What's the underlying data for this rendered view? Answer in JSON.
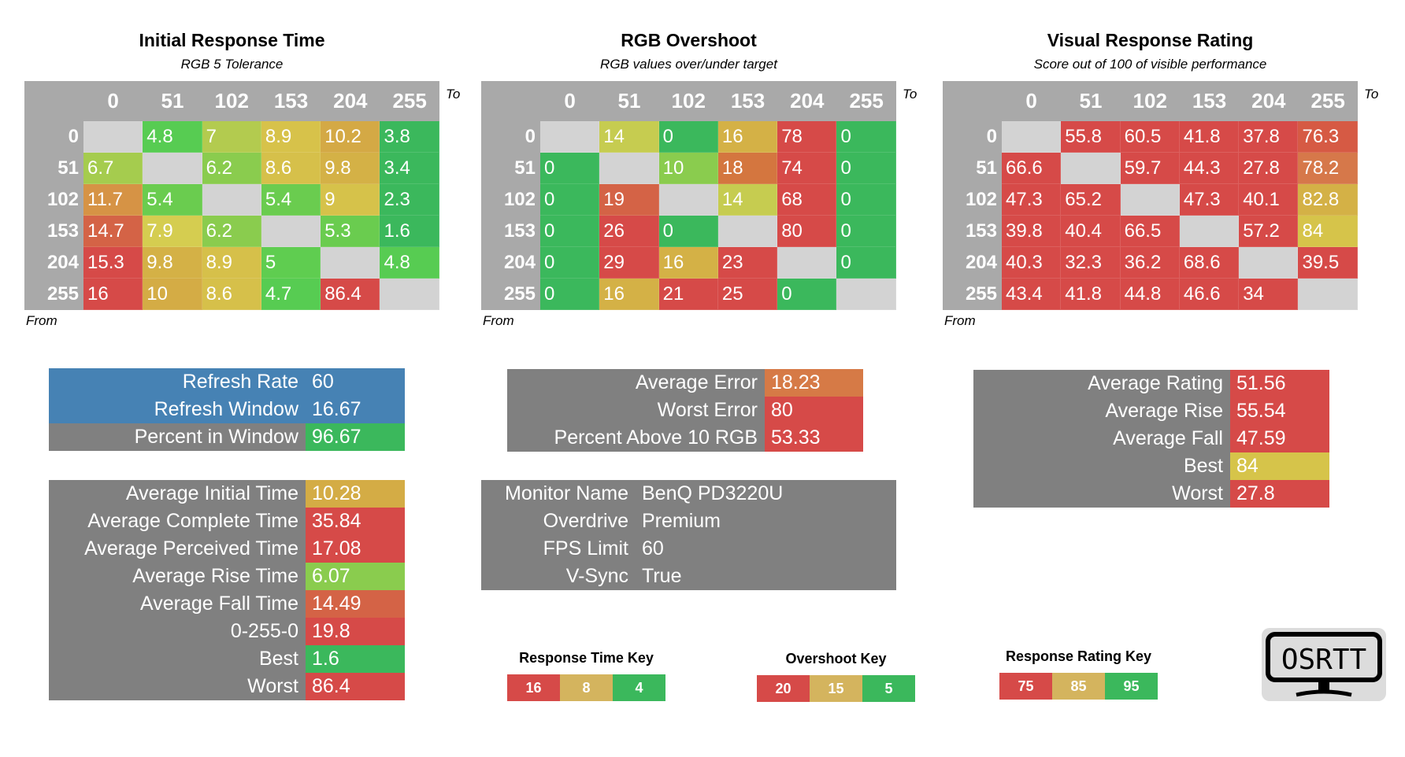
{
  "axis_labels": [
    "0",
    "51",
    "102",
    "153",
    "204",
    "255"
  ],
  "to_label": "To",
  "from_label": "From",
  "colors": {
    "header": "#a9a9a9",
    "diagonal": "#d3d3d3",
    "red": "#d64a48",
    "green": "#3bb85c",
    "stat_gray": "#808080",
    "blue": "#4682b4"
  },
  "tables": [
    {
      "title": "Initial Response Time",
      "subtitle": "RGB 5 Tolerance",
      "rows": [
        [
          null,
          {
            "v": "4.8",
            "c": "#57cc52"
          },
          {
            "v": "7",
            "c": "#b3cb4f"
          },
          {
            "v": "8.9",
            "c": "#d7c24a"
          },
          {
            "v": "10.2",
            "c": "#d4a945"
          },
          {
            "v": "3.8",
            "c": "#3bb85c"
          }
        ],
        [
          {
            "v": "6.7",
            "c": "#a5cc4e"
          },
          null,
          {
            "v": "6.2",
            "c": "#8acc4e"
          },
          {
            "v": "8.6",
            "c": "#d6c04a"
          },
          {
            "v": "9.8",
            "c": "#d4b146"
          },
          {
            "v": "3.4",
            "c": "#3bb85c"
          }
        ],
        [
          {
            "v": "11.7",
            "c": "#d69345"
          },
          {
            "v": "5.4",
            "c": "#6acc4f"
          },
          null,
          {
            "v": "5.4",
            "c": "#6acc4f"
          },
          {
            "v": "9",
            "c": "#d6c24a"
          },
          {
            "v": "2.3",
            "c": "#3bb85c"
          }
        ],
        [
          {
            "v": "14.7",
            "c": "#d46346"
          },
          {
            "v": "7.9",
            "c": "#d5cd50"
          },
          {
            "v": "6.2",
            "c": "#8acc4e"
          },
          null,
          {
            "v": "5.3",
            "c": "#6acc4f"
          },
          {
            "v": "1.6",
            "c": "#3bb85c"
          }
        ],
        [
          {
            "v": "15.3",
            "c": "#d64a48"
          },
          {
            "v": "9.8",
            "c": "#d4b146"
          },
          {
            "v": "8.9",
            "c": "#d6c04a"
          },
          {
            "v": "5",
            "c": "#5fcd50"
          },
          null,
          {
            "v": "4.8",
            "c": "#57cc52"
          }
        ],
        [
          {
            "v": "16",
            "c": "#d64a48"
          },
          {
            "v": "10",
            "c": "#d4ac45"
          },
          {
            "v": "8.6",
            "c": "#d6c04a"
          },
          {
            "v": "4.7",
            "c": "#57cc52"
          },
          {
            "v": "86.4",
            "c": "#d64a48"
          },
          null
        ]
      ]
    },
    {
      "title": "RGB Overshoot",
      "subtitle": "RGB values over/under target",
      "rows": [
        [
          null,
          {
            "v": "14",
            "c": "#c6cc50"
          },
          {
            "v": "0",
            "c": "#3bb85c"
          },
          {
            "v": "16",
            "c": "#d4b146"
          },
          {
            "v": "78",
            "c": "#d64a48"
          },
          {
            "v": "0",
            "c": "#3bb85c"
          }
        ],
        [
          {
            "v": "0",
            "c": "#3bb85c"
          },
          null,
          {
            "v": "10",
            "c": "#8acc4e"
          },
          {
            "v": "18",
            "c": "#d4763f"
          },
          {
            "v": "74",
            "c": "#d64a48"
          },
          {
            "v": "0",
            "c": "#3bb85c"
          }
        ],
        [
          {
            "v": "0",
            "c": "#3bb85c"
          },
          {
            "v": "19",
            "c": "#d46346"
          },
          null,
          {
            "v": "14",
            "c": "#c6cc50"
          },
          {
            "v": "68",
            "c": "#d64a48"
          },
          {
            "v": "0",
            "c": "#3bb85c"
          }
        ],
        [
          {
            "v": "0",
            "c": "#3bb85c"
          },
          {
            "v": "26",
            "c": "#d64a48"
          },
          {
            "v": "0",
            "c": "#3bb85c"
          },
          null,
          {
            "v": "80",
            "c": "#d64a48"
          },
          {
            "v": "0",
            "c": "#3bb85c"
          }
        ],
        [
          {
            "v": "0",
            "c": "#3bb85c"
          },
          {
            "v": "29",
            "c": "#d64a48"
          },
          {
            "v": "16",
            "c": "#d4b146"
          },
          {
            "v": "23",
            "c": "#d64a48"
          },
          null,
          {
            "v": "0",
            "c": "#3bb85c"
          }
        ],
        [
          {
            "v": "0",
            "c": "#3bb85c"
          },
          {
            "v": "16",
            "c": "#d4b146"
          },
          {
            "v": "21",
            "c": "#d64a48"
          },
          {
            "v": "25",
            "c": "#d64a48"
          },
          {
            "v": "0",
            "c": "#3bb85c"
          },
          null
        ]
      ]
    },
    {
      "title": "Visual Response Rating",
      "subtitle": "Score out of 100 of visible performance",
      "rows": [
        [
          null,
          {
            "v": "55.8",
            "c": "#d64a48"
          },
          {
            "v": "60.5",
            "c": "#d64a48"
          },
          {
            "v": "41.8",
            "c": "#d64a48"
          },
          {
            "v": "37.8",
            "c": "#d64a48"
          },
          {
            "v": "76.3",
            "c": "#d65a44"
          }
        ],
        [
          {
            "v": "66.6",
            "c": "#d64a48"
          },
          null,
          {
            "v": "59.7",
            "c": "#d64a48"
          },
          {
            "v": "44.3",
            "c": "#d64a48"
          },
          {
            "v": "27.8",
            "c": "#d64a48"
          },
          {
            "v": "78.2",
            "c": "#d6784a"
          }
        ],
        [
          {
            "v": "47.3",
            "c": "#d64a48"
          },
          {
            "v": "65.2",
            "c": "#d64a48"
          },
          null,
          {
            "v": "47.3",
            "c": "#d64a48"
          },
          {
            "v": "40.1",
            "c": "#d64a48"
          },
          {
            "v": "82.8",
            "c": "#d4b146"
          }
        ],
        [
          {
            "v": "39.8",
            "c": "#d64a48"
          },
          {
            "v": "40.4",
            "c": "#d64a48"
          },
          {
            "v": "66.5",
            "c": "#d64a48"
          },
          null,
          {
            "v": "57.2",
            "c": "#d64a48"
          },
          {
            "v": "84",
            "c": "#d6c44a"
          }
        ],
        [
          {
            "v": "40.3",
            "c": "#d64a48"
          },
          {
            "v": "32.3",
            "c": "#d64a48"
          },
          {
            "v": "36.2",
            "c": "#d64a48"
          },
          {
            "v": "68.6",
            "c": "#d64a48"
          },
          null,
          {
            "v": "39.5",
            "c": "#d64a48"
          }
        ],
        [
          {
            "v": "43.4",
            "c": "#d64a48"
          },
          {
            "v": "41.8",
            "c": "#d64a48"
          },
          {
            "v": "44.8",
            "c": "#d64a48"
          },
          {
            "v": "46.6",
            "c": "#d64a48"
          },
          {
            "v": "34",
            "c": "#d64a48"
          },
          null
        ]
      ]
    }
  ],
  "refresh_stats": [
    {
      "label": "Refresh Rate",
      "value": "60",
      "lc": "#4682b4",
      "vc": "#4682b4"
    },
    {
      "label": "Refresh Window",
      "value": "16.67",
      "lc": "#4682b4",
      "vc": "#4682b4"
    },
    {
      "label": "Percent in Window",
      "value": "96.67",
      "lc": "#808080",
      "vc": "#3bb85c"
    }
  ],
  "time_stats": [
    {
      "label": "Average Initial Time",
      "value": "10.28",
      "vc": "#d4ac45"
    },
    {
      "label": "Average Complete Time",
      "value": "35.84",
      "vc": "#d64a48"
    },
    {
      "label": "Average Perceived Time",
      "value": "17.08",
      "vc": "#d64a48"
    },
    {
      "label": "Average Rise Time",
      "value": "6.07",
      "vc": "#8acc4e"
    },
    {
      "label": "Average Fall Time",
      "value": "14.49",
      "vc": "#d46346"
    },
    {
      "label": "0-255-0",
      "value": "19.8",
      "vc": "#d64a48"
    },
    {
      "label": "Best",
      "value": "1.6",
      "vc": "#3bb85c"
    },
    {
      "label": "Worst",
      "value": "86.4",
      "vc": "#d64a48"
    }
  ],
  "error_stats": [
    {
      "label": "Average Error",
      "value": "18.23",
      "vc": "#d67a46"
    },
    {
      "label": "Worst Error",
      "value": "80",
      "vc": "#d64a48"
    },
    {
      "label": "Percent Above 10 RGB",
      "value": "53.33",
      "vc": "#d64a48"
    }
  ],
  "monitor_info": [
    {
      "label": "Monitor Name",
      "value": "BenQ PD3220U"
    },
    {
      "label": "Overdrive",
      "value": "Premium"
    },
    {
      "label": "FPS Limit",
      "value": "60"
    },
    {
      "label": "V-Sync",
      "value": "True"
    }
  ],
  "rating_stats": [
    {
      "label": "Average Rating",
      "value": "51.56",
      "vc": "#d64a48"
    },
    {
      "label": "Average Rise",
      "value": "55.54",
      "vc": "#d64a48"
    },
    {
      "label": "Average Fall",
      "value": "47.59",
      "vc": "#d64a48"
    },
    {
      "label": "Best",
      "value": "84",
      "vc": "#d6c44a"
    },
    {
      "label": "Worst",
      "value": "27.8",
      "vc": "#d64a48"
    }
  ],
  "keys": [
    {
      "title": "Response Time Key",
      "items": [
        {
          "v": "16",
          "c": "#d64a48"
        },
        {
          "v": "8",
          "c": "#d4b45e"
        },
        {
          "v": "4",
          "c": "#3bb85c"
        }
      ]
    },
    {
      "title": "Overshoot Key",
      "items": [
        {
          "v": "20",
          "c": "#d64a48"
        },
        {
          "v": "15",
          "c": "#d4b45e"
        },
        {
          "v": "5",
          "c": "#3bb85c"
        }
      ]
    },
    {
      "title": "Response Rating Key",
      "items": [
        {
          "v": "75",
          "c": "#d64a48"
        },
        {
          "v": "85",
          "c": "#d4b45e"
        },
        {
          "v": "95",
          "c": "#3bb85c"
        }
      ]
    }
  ],
  "logo": {
    "text": "OSRTT"
  }
}
